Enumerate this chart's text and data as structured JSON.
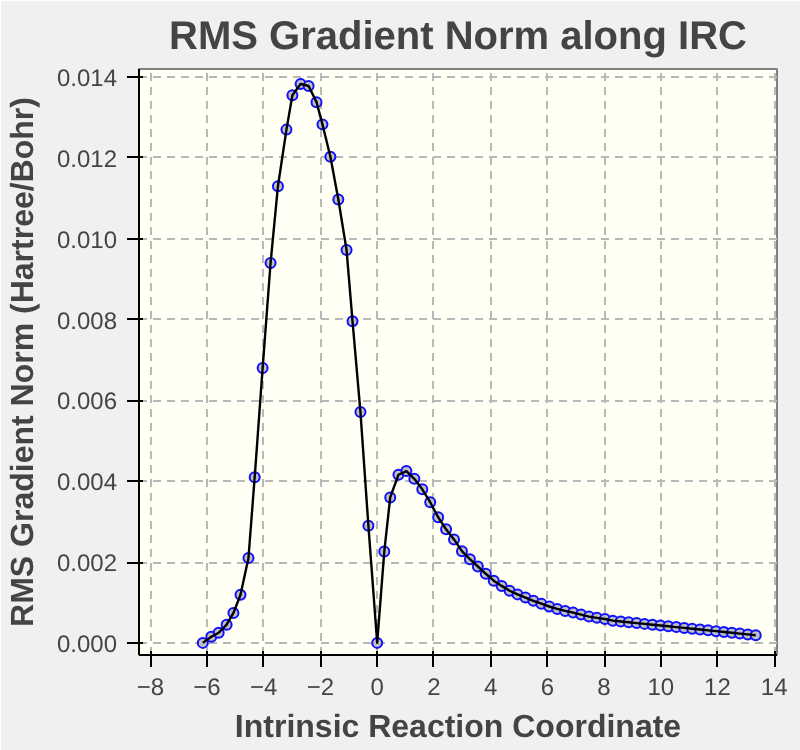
{
  "chart_data": {
    "type": "line",
    "title": "RMS Gradient Norm along IRC",
    "xlabel": "Intrinsic Reaction Coordinate",
    "ylabel": "RMS Gradient Norm (Hartree/Bohr)",
    "x": [
      -6.15,
      -5.85,
      -5.59,
      -5.31,
      -5.07,
      -4.82,
      -4.54,
      -4.32,
      -4.04,
      -3.76,
      -3.5,
      -3.2,
      -2.99,
      -2.7,
      -2.42,
      -2.14,
      -1.93,
      -1.65,
      -1.37,
      -1.08,
      -0.87,
      -0.59,
      -0.31,
      0.0,
      0.25,
      0.46,
      0.75,
      1.03,
      1.31,
      1.59,
      1.87,
      2.15,
      2.43,
      2.71,
      2.99,
      3.27,
      3.55,
      3.83,
      4.11,
      4.39,
      4.67,
      4.95,
      5.23,
      5.51,
      5.79,
      6.07,
      6.35,
      6.63,
      6.91,
      7.19,
      7.47,
      7.75,
      8.03,
      8.31,
      8.59,
      8.87,
      9.15,
      9.43,
      9.71,
      9.99,
      10.27,
      10.55,
      10.83,
      11.11,
      11.39,
      11.67,
      11.95,
      12.23,
      12.51,
      12.79,
      13.07,
      13.35
    ],
    "series": [
      {
        "color": "#000000",
        "values": [
          0.0,
          0.00015,
          0.00025,
          0.00045,
          0.00074,
          0.00119,
          0.0021,
          0.0041,
          0.0068,
          0.0094,
          0.0113,
          0.0127,
          0.01355,
          0.01383,
          0.01378,
          0.01338,
          0.01283,
          0.01203,
          0.01097,
          0.00972,
          0.00796,
          0.00571,
          0.0029,
          0.0,
          0.00226,
          0.0036,
          0.00416,
          0.00425,
          0.00406,
          0.0038,
          0.00348,
          0.00311,
          0.00281,
          0.00256,
          0.00227,
          0.00207,
          0.00189,
          0.00171,
          0.00154,
          0.00141,
          0.00129,
          0.0012,
          0.00112,
          0.00104,
          0.00097,
          0.0009,
          0.00084,
          0.00079,
          0.00075,
          0.0007,
          0.00065,
          0.00062,
          0.00059,
          0.00055,
          0.00053,
          0.00051,
          0.00049,
          0.00047,
          0.00045,
          0.00043,
          0.00041,
          0.00039,
          0.00037,
          0.00035,
          0.00033,
          0.00031,
          0.00029,
          0.00027,
          0.00025,
          0.00023,
          0.00021,
          0.00019
        ]
      }
    ],
    "xlim": [
      -8.4,
      14.1
    ],
    "ylim": [
      -0.0003,
      0.0142
    ],
    "xticks": [
      -8,
      -6,
      -4,
      -2,
      0,
      2,
      4,
      6,
      8,
      10,
      12,
      14
    ],
    "yticks": [
      {
        "value": 0,
        "label": "0.000"
      },
      {
        "value": 0.002,
        "label": "0.002"
      },
      {
        "value": 0.004,
        "label": "0.004"
      },
      {
        "value": 0.006,
        "label": "0.006"
      },
      {
        "value": 0.008,
        "label": "0.008"
      },
      {
        "value": 0.01,
        "label": "0.010"
      },
      {
        "value": 0.012,
        "label": "0.012"
      },
      {
        "value": 0.014,
        "label": "0.014"
      }
    ],
    "grid": true,
    "marker": "circle",
    "line_style": "solid"
  }
}
